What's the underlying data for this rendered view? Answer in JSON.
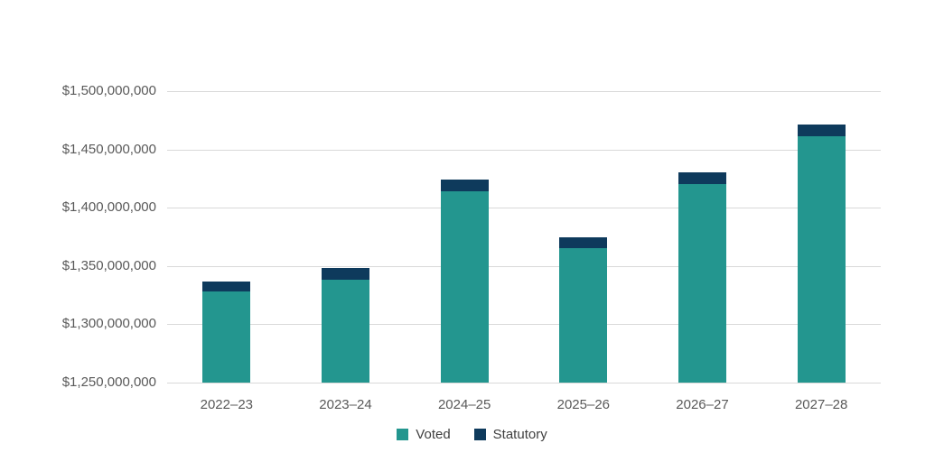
{
  "chart_data": {
    "type": "bar",
    "stacked": true,
    "title": "",
    "xlabel": "",
    "ylabel": "",
    "categories": [
      "2022–23",
      "2023–24",
      "2024–25",
      "2025–26",
      "2026–27",
      "2027–28"
    ],
    "series": [
      {
        "name": "Voted",
        "color": "#23968F",
        "values": [
          1328000000,
          1338000000,
          1414000000,
          1365000000,
          1420000000,
          1461000000
        ]
      },
      {
        "name": "Statutory",
        "color": "#0E3A5C",
        "values": [
          9000000,
          10000000,
          10000000,
          10000000,
          10000000,
          10000000
        ]
      }
    ],
    "totals": [
      1337000000,
      1348000000,
      1424000000,
      1375000000,
      1430000000,
      1471000000
    ],
    "ylim": [
      1250000000,
      1500000000
    ],
    "ytick_step": 50000000,
    "ytick_labels": [
      "$1,250,000,000",
      "$1,300,000,000",
      "$1,350,000,000",
      "$1,400,000,000",
      "$1,450,000,000",
      "$1,500,000,000"
    ],
    "grid": true,
    "legend_position": "bottom-center",
    "colors": {
      "gridline": "#d9d9d9",
      "axis_text": "#595959",
      "legend_text": "#404040",
      "background": "#ffffff"
    }
  }
}
